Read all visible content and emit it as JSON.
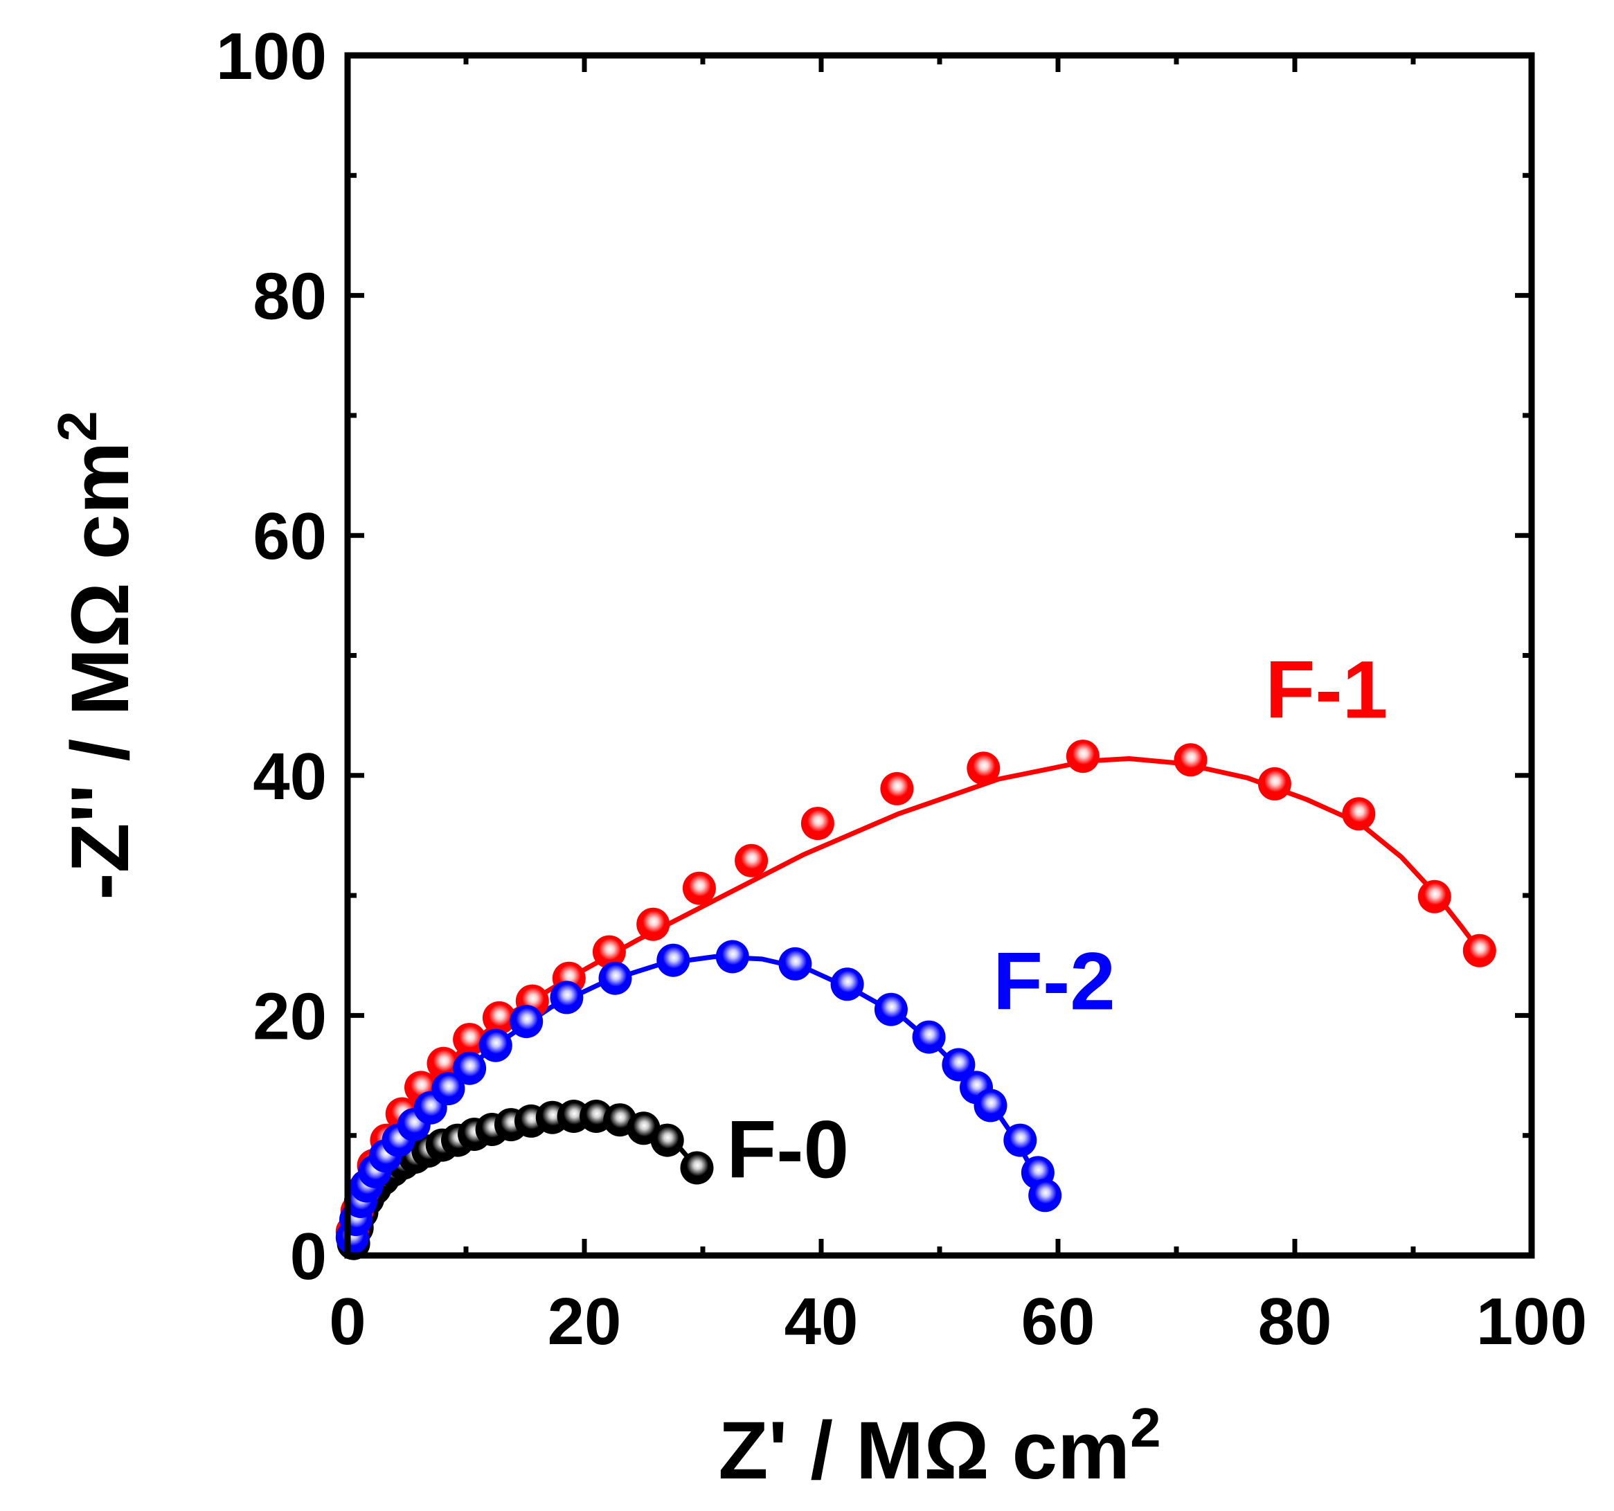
{
  "chart_data": {
    "type": "scatter",
    "title": "",
    "xlabel": "Z' / MΩ cm",
    "xlabel_sup": "2",
    "ylabel": "-Z'' / MΩ cm",
    "ylabel_sup": "2",
    "xlim": [
      0,
      100
    ],
    "ylim": [
      0,
      100
    ],
    "xticks": [
      0,
      20,
      40,
      60,
      80,
      100
    ],
    "yticks": [
      0,
      20,
      40,
      60,
      80,
      100
    ],
    "xtick_labels": [
      "0",
      "20",
      "40",
      "60",
      "80",
      "100"
    ],
    "ytick_labels": [
      "0",
      "20",
      "40",
      "60",
      "80",
      "100"
    ],
    "grid": false,
    "series": [
      {
        "name": "F-0",
        "label": "F-0",
        "color": "#000000",
        "marker_highlight": "#cfcfcf",
        "x": [
          0.5,
          0.8,
          1.2,
          1.7,
          2.3,
          3.0,
          3.8,
          4.7,
          5.7,
          6.8,
          8.0,
          9.3,
          10.7,
          12.2,
          13.8,
          15.5,
          17.3,
          19.1,
          21.0,
          23.0,
          25.0,
          27.0,
          29.5
        ],
        "y": [
          1.0,
          2.3,
          3.6,
          4.7,
          5.6,
          6.4,
          7.1,
          7.7,
          8.2,
          8.7,
          9.2,
          9.6,
          10.1,
          10.5,
          10.9,
          11.2,
          11.5,
          11.6,
          11.6,
          11.3,
          10.6,
          9.6,
          7.3
        ]
      },
      {
        "name": "F-1",
        "label": "F-1",
        "color": "#ff0000",
        "marker_highlight": "#ffd0d0",
        "x": [
          0.4,
          0.8,
          1.4,
          2.2,
          3.3,
          4.6,
          6.2,
          8.1,
          10.3,
          12.8,
          15.6,
          18.7,
          22.1,
          25.8,
          29.7,
          34.1,
          39.7,
          46.4,
          53.7,
          62.1,
          71.2,
          78.3,
          85.4,
          91.8,
          95.6
        ],
        "y": [
          2.0,
          3.7,
          5.5,
          7.5,
          9.6,
          11.8,
          14.0,
          16.0,
          18.0,
          19.8,
          21.2,
          23.1,
          25.3,
          27.6,
          30.6,
          32.9,
          36.0,
          38.9,
          40.6,
          41.6,
          41.3,
          39.3,
          36.8,
          29.9,
          25.4
        ]
      },
      {
        "name": "F-2",
        "label": "F-2",
        "color": "#0000ff",
        "marker_highlight": "#c8c8ff",
        "x": [
          0.4,
          0.7,
          1.1,
          1.6,
          2.3,
          3.2,
          4.3,
          5.6,
          7.0,
          8.5,
          10.3,
          12.5,
          15.1,
          18.5,
          22.6,
          27.5,
          32.5,
          37.8,
          42.2,
          45.9,
          49.1,
          51.6,
          53.1,
          54.3,
          56.8,
          58.3,
          58.9
        ],
        "y": [
          1.5,
          3.0,
          4.5,
          5.8,
          7.0,
          8.3,
          9.6,
          10.9,
          12.3,
          13.9,
          15.6,
          17.5,
          19.5,
          21.5,
          23.1,
          24.6,
          24.9,
          24.3,
          22.6,
          20.5,
          18.2,
          15.9,
          14.0,
          12.5,
          9.6,
          6.9,
          5.0
        ]
      }
    ],
    "fit_curves": [
      {
        "series": "F-0",
        "x": [
          0.0,
          0.3,
          0.8,
          1.5,
          2.5,
          3.8,
          5.4,
          7.3,
          9.5,
          12.0,
          14.8,
          17.8,
          20.5,
          23.0,
          25.5,
          27.5,
          29.5
        ],
        "y": [
          0.0,
          1.5,
          3.2,
          4.8,
          6.0,
          7.1,
          8.0,
          8.8,
          9.6,
          10.3,
          10.9,
          11.4,
          11.6,
          11.4,
          10.7,
          9.6,
          7.3
        ]
      },
      {
        "series": "F-1",
        "x": [
          0.0,
          0.4,
          1.2,
          2.5,
          4.2,
          6.5,
          9.5,
          13.5,
          18.5,
          24.5,
          31.0,
          38.5,
          46.5,
          55.0,
          62.5,
          66.0,
          70.5,
          76.0,
          81.0,
          85.5,
          89.0,
          92.0,
          94.0,
          95.6
        ],
        "y": [
          0.0,
          2.5,
          5.2,
          8.2,
          11.0,
          14.0,
          17.0,
          20.0,
          23.0,
          26.3,
          29.6,
          33.4,
          36.8,
          39.7,
          41.2,
          41.4,
          41.0,
          39.8,
          38.0,
          36.0,
          33.2,
          30.0,
          27.5,
          25.4
        ]
      },
      {
        "series": "F-2",
        "x": [
          0.0,
          0.4,
          1.2,
          2.5,
          4.3,
          6.7,
          9.7,
          13.2,
          17.2,
          21.7,
          26.5,
          31.0,
          35.0,
          39.0,
          43.0,
          46.8,
          50.0,
          52.5,
          54.8,
          56.6,
          57.9,
          58.9
        ],
        "y": [
          0.0,
          2.0,
          4.5,
          7.2,
          9.8,
          12.5,
          15.3,
          18.0,
          20.7,
          22.8,
          24.3,
          24.9,
          24.7,
          23.8,
          22.0,
          19.9,
          17.2,
          14.7,
          12.0,
          9.4,
          7.0,
          5.0
        ]
      }
    ],
    "annotations": [
      {
        "text": "F-1",
        "series": "F-1",
        "x": 77.5,
        "y": 44.8
      },
      {
        "text": "F-2",
        "series": "F-2",
        "x": 54.5,
        "y": 20.5
      },
      {
        "text": "F-0",
        "series": "F-0",
        "x": 32.0,
        "y": 6.5
      }
    ]
  }
}
